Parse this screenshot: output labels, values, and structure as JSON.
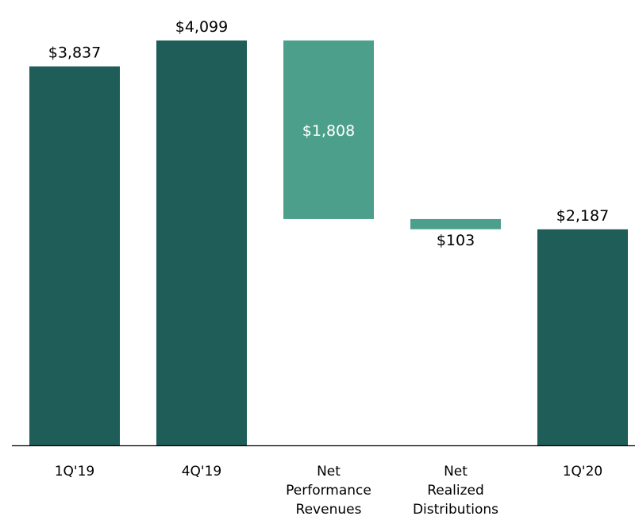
{
  "chart_data": {
    "type": "bar",
    "subtype": "waterfall",
    "categories": [
      [
        "1Q'19"
      ],
      [
        "4Q'19"
      ],
      [
        "Net",
        "Performance",
        "Revenues"
      ],
      [
        "Net",
        "Realized",
        "Distributions"
      ],
      [
        "1Q'20"
      ]
    ],
    "bars": [
      {
        "kind": "total",
        "start": 0,
        "end": 3837,
        "label": "$3,837"
      },
      {
        "kind": "total",
        "start": 0,
        "end": 4099,
        "label": "$4,099"
      },
      {
        "kind": "decrease",
        "start": 4099,
        "end": 2291,
        "label": "$1,808"
      },
      {
        "kind": "decrease",
        "start": 2291,
        "end": 2188,
        "label": "$103"
      },
      {
        "kind": "total",
        "start": 0,
        "end": 2187,
        "label": "$2,187"
      }
    ],
    "ylim": [
      0,
      4099
    ],
    "grid": false,
    "legend": "none",
    "colors": {
      "total": "#1e5d58",
      "decrease": "#4ca08b",
      "axis": "#000000",
      "label_dark": "#000000",
      "label_light": "#ffffff"
    }
  }
}
